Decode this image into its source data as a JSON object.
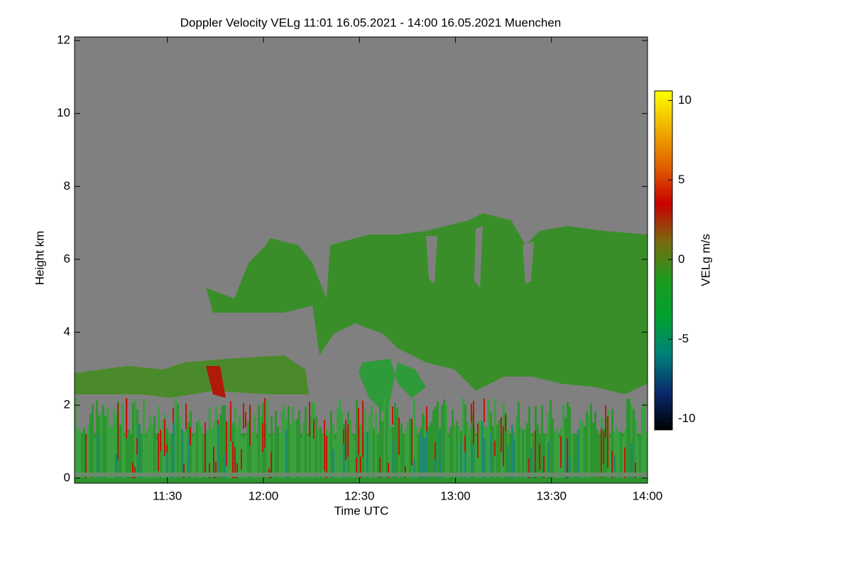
{
  "chart_data": {
    "type": "heatmap",
    "title": "Doppler Velocity VELg   11:01 16.05.2021 - 14:00 16.05.2021 Muenchen",
    "xlabel": "Time UTC",
    "ylabel": "Height km",
    "xlim": [
      "11:01",
      "14:00"
    ],
    "xticks": [
      "11:30",
      "12:00",
      "12:30",
      "13:00",
      "13:30",
      "14:00"
    ],
    "ylim": [
      -0.14,
      12.1
    ],
    "yticks": [
      0,
      2,
      4,
      6,
      8,
      10,
      12
    ],
    "colorbar": {
      "label": "VELg m/s",
      "clim": [
        -10.7,
        10.6
      ],
      "ticks": [
        -10,
        -5,
        0,
        5,
        10
      ],
      "colormap": [
        "#000000",
        "#0a2a6e",
        "#00807a",
        "#00a030",
        "#1e9a1e",
        "#7a6a10",
        "#c80000",
        "#e06000",
        "#f0b000",
        "#ffff00"
      ]
    }
  }
}
